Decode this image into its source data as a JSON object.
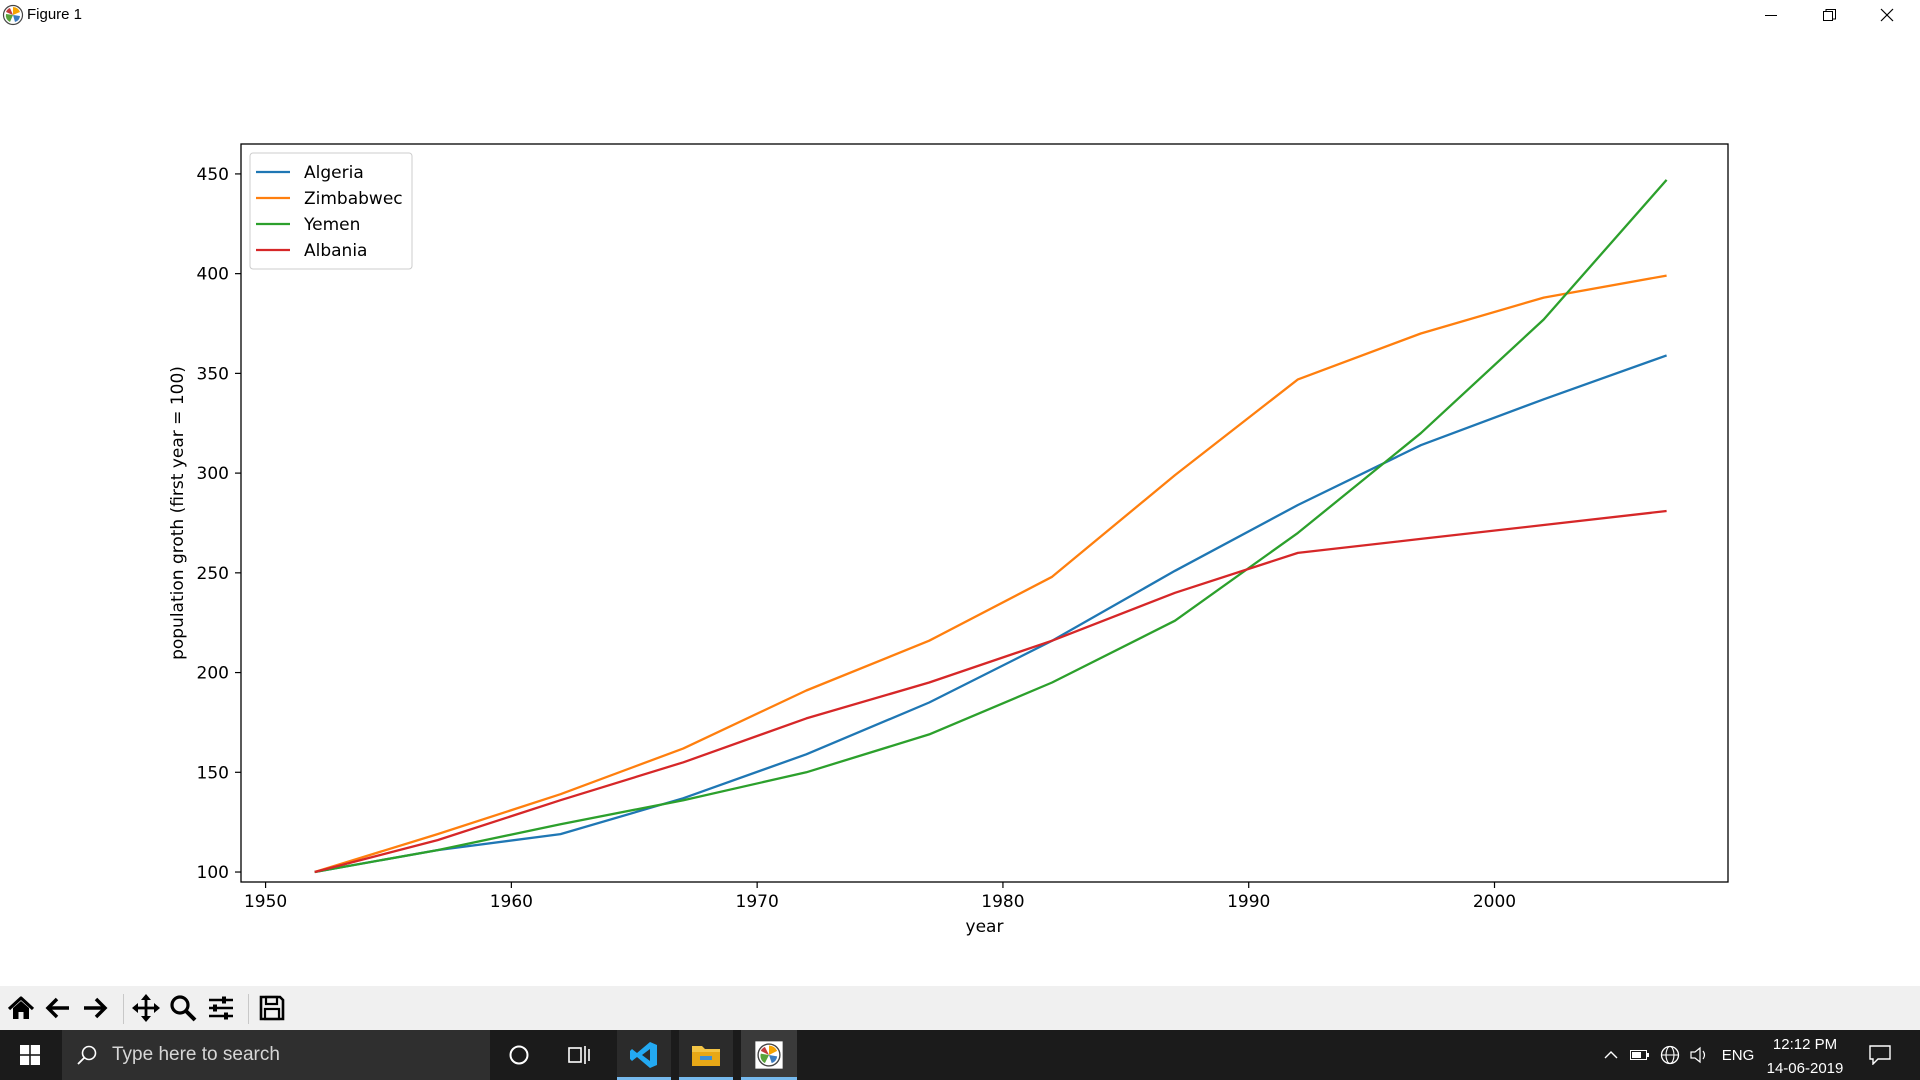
{
  "window": {
    "title": "Figure 1",
    "app_icon": "matplotlib-icon",
    "controls": [
      "minimize-icon",
      "restore-icon",
      "close-icon"
    ]
  },
  "chart_data": {
    "type": "line",
    "title": "",
    "xlabel": "year",
    "ylabel": "population groth (first year = 100)",
    "xlim": [
      1949,
      2009.5
    ],
    "ylim": [
      95,
      465
    ],
    "xticks": [
      1950,
      1960,
      1970,
      1980,
      1990,
      2000
    ],
    "yticks": [
      100,
      150,
      200,
      250,
      300,
      350,
      400,
      450
    ],
    "grid": false,
    "legend_position": "top-left",
    "x": [
      1952,
      1957,
      1962,
      1967,
      1972,
      1977,
      1982,
      1987,
      1992,
      1997,
      2002,
      2007
    ],
    "series": [
      {
        "name": "Algeria",
        "color": "#1f77b4",
        "values": [
          100,
          111,
          119,
          137,
          159,
          185,
          216,
          251,
          284,
          314,
          337,
          359
        ]
      },
      {
        "name": "Zimbabwec",
        "color": "#ff7f0e",
        "values": [
          100,
          119,
          139,
          162,
          191,
          216,
          248,
          299,
          347,
          370,
          388,
          399
        ]
      },
      {
        "name": "Yemen",
        "color": "#2ca02c",
        "values": [
          100,
          111,
          124,
          136,
          150,
          169,
          195,
          226,
          270,
          320,
          377,
          447
        ]
      },
      {
        "name": "Albania",
        "color": "#d62728",
        "values": [
          100,
          116,
          136,
          155,
          177,
          195,
          216,
          240,
          260,
          267,
          274,
          281
        ]
      }
    ]
  },
  "toolbar": {
    "buttons": [
      "home-icon",
      "back-icon",
      "forward-icon",
      "pan-icon",
      "zoom-icon",
      "configure-subplots-icon",
      "save-icon"
    ]
  },
  "taskbar": {
    "search_placeholder": "Type here to search",
    "apps": [
      "cortana-icon",
      "task-view-icon",
      "vscode-icon",
      "file-explorer-icon",
      "matplotlib-icon"
    ],
    "tray_language": "ENG",
    "time": "12:12 PM",
    "date": "14-06-2019"
  }
}
